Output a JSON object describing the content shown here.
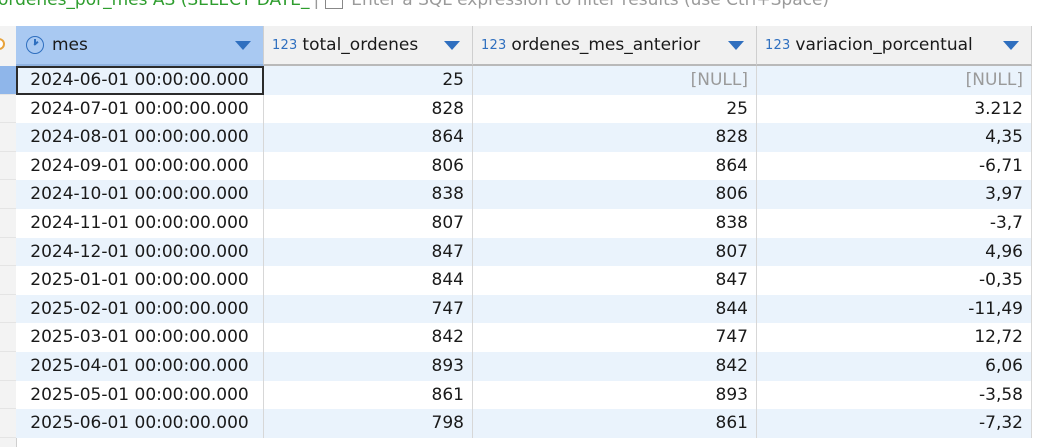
{
  "filter_bar": {
    "sql_prefix": "ordenes_por_mes AS (SELECT DATE_",
    "hint": "Enter a SQL expression to filter results (use Ctrl+Space)"
  },
  "columns": [
    {
      "label": "mes",
      "type_icon": "clock-icon"
    },
    {
      "label": "total_ordenes",
      "type_prefix": "123"
    },
    {
      "label": "ordenes_mes_anterior",
      "type_prefix": "123"
    },
    {
      "label": "variacion_porcentual",
      "type_prefix": "123"
    }
  ],
  "rows": [
    [
      "2024-06-01 00:00:00.000",
      "25",
      "[NULL]",
      "[NULL]"
    ],
    [
      "2024-07-01 00:00:00.000",
      "828",
      "25",
      "3.212"
    ],
    [
      "2024-08-01 00:00:00.000",
      "864",
      "828",
      "4,35"
    ],
    [
      "2024-09-01 00:00:00.000",
      "806",
      "864",
      "-6,71"
    ],
    [
      "2024-10-01 00:00:00.000",
      "838",
      "806",
      "3,97"
    ],
    [
      "2024-11-01 00:00:00.000",
      "807",
      "838",
      "-3,7"
    ],
    [
      "2024-12-01 00:00:00.000",
      "847",
      "807",
      "4,96"
    ],
    [
      "2025-01-01 00:00:00.000",
      "844",
      "847",
      "-0,35"
    ],
    [
      "2025-02-01 00:00:00.000",
      "747",
      "844",
      "-11,49"
    ],
    [
      "2025-03-01 00:00:00.000",
      "842",
      "747",
      "12,72"
    ],
    [
      "2025-04-01 00:00:00.000",
      "893",
      "842",
      "6,06"
    ],
    [
      "2025-05-01 00:00:00.000",
      "861",
      "893",
      "-3,58"
    ],
    [
      "2025-06-01 00:00:00.000",
      "798",
      "861",
      "-7,32"
    ]
  ],
  "colors": {
    "selected_header": "#a9c9f2",
    "alt_row": "#eaf3fc",
    "type_icon": "#2f6fbf",
    "null_text": "#9a9a9a",
    "sql_text": "#2e9d2e"
  }
}
